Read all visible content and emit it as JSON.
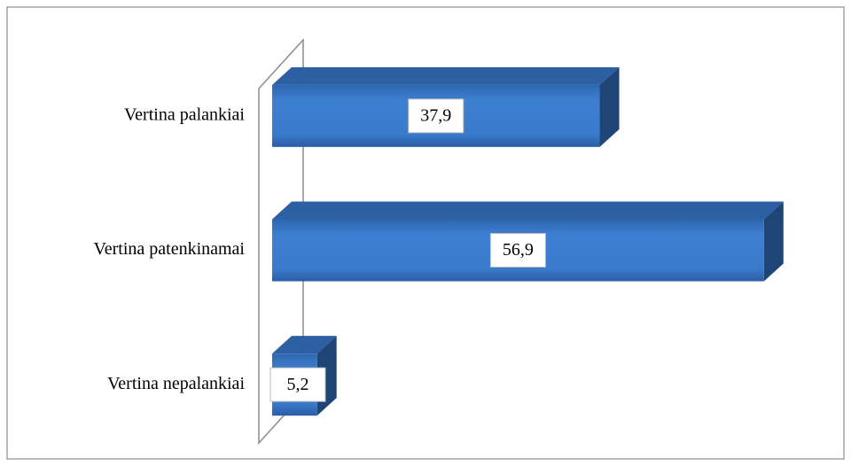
{
  "chart_data": {
    "type": "bar3d-horizontal",
    "categories": [
      "Vertina palankiai",
      "Vertina patenkinamai",
      "Vertina nepalankiai"
    ],
    "values": [
      37.9,
      56.9,
      5.2
    ],
    "value_labels": [
      "37,9",
      "56,9",
      "5,2"
    ],
    "color": "#3a78c8",
    "xlim": [
      0,
      60
    ]
  }
}
